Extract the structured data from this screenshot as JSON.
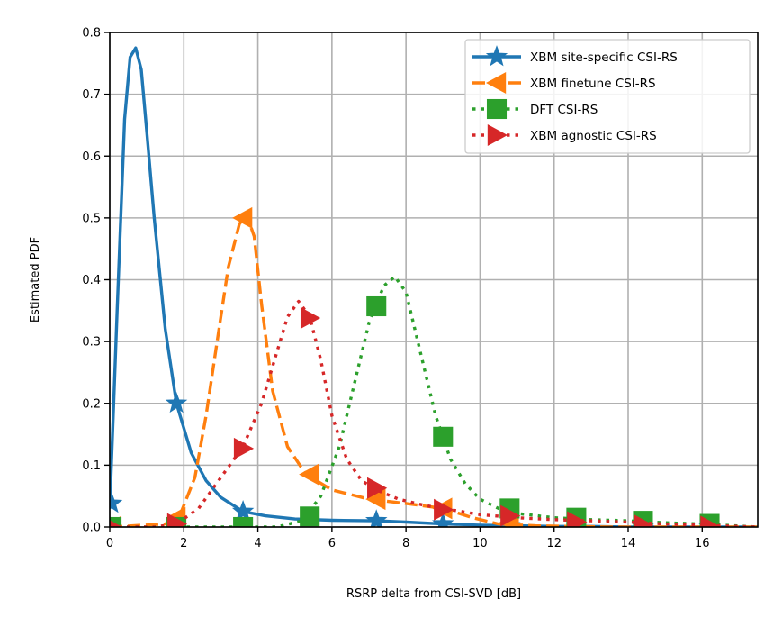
{
  "chart_data": {
    "type": "line",
    "title": "",
    "xlabel": "RSRP delta from CSI-SVD [dB]",
    "ylabel": "Estimated PDF",
    "xlim": [
      0,
      17.5
    ],
    "ylim": [
      0,
      0.8
    ],
    "xticks": [
      0,
      2,
      4,
      6,
      8,
      10,
      12,
      14,
      16
    ],
    "xtick_labels": [
      "0",
      "2",
      "4",
      "6",
      "8",
      "10",
      "12",
      "14",
      "16"
    ],
    "yticks": [
      0.0,
      0.1,
      0.2,
      0.3,
      0.4,
      0.5,
      0.6,
      0.7,
      0.8
    ],
    "ytick_labels": [
      "0.0",
      "0.1",
      "0.2",
      "0.3",
      "0.4",
      "0.5",
      "0.6",
      "0.7",
      "0.8"
    ],
    "grid": true,
    "legend_position": "top-right",
    "series": [
      {
        "name": "XBM site-specific CSI-RS",
        "color": "#1f77b4",
        "linestyle": "solid",
        "marker": "star",
        "x": [
          0,
          0.2,
          0.4,
          0.55,
          0.7,
          0.85,
          1.0,
          1.2,
          1.5,
          1.8,
          2.2,
          2.6,
          3.0,
          3.6,
          4.2,
          5.0,
          6.0,
          7.2,
          8.0,
          9.0,
          10.0,
          11.0,
          12.0,
          13.0,
          14.0,
          15.0,
          16.0,
          17.5
        ],
        "y": [
          0.03,
          0.35,
          0.66,
          0.76,
          0.775,
          0.74,
          0.64,
          0.5,
          0.32,
          0.2,
          0.12,
          0.075,
          0.048,
          0.025,
          0.018,
          0.013,
          0.011,
          0.01,
          0.008,
          0.005,
          0.003,
          0.002,
          0.001,
          0.001,
          0.0,
          0.0,
          0.0,
          0.0
        ],
        "marker_x": [
          0.05,
          1.8,
          3.6,
          7.2,
          9.0,
          10.8,
          12.6,
          14.4,
          16.2
        ],
        "marker_y": [
          0.038,
          0.2,
          0.025,
          0.01,
          0.005,
          0.002,
          0.001,
          0.0,
          0.0
        ]
      },
      {
        "name": "XBM finetune CSI-RS",
        "color": "#ff7f0e",
        "linestyle": "dashed",
        "marker": "triangle-left",
        "x": [
          0,
          1.5,
          1.9,
          2.3,
          2.6,
          2.9,
          3.2,
          3.5,
          3.7,
          3.9,
          4.1,
          4.4,
          4.8,
          5.3,
          6.0,
          7.0,
          8.0,
          9.0,
          9.8,
          10.5,
          11.5,
          12.5,
          13.5,
          15.0,
          17.5
        ],
        "y": [
          0.0,
          0.005,
          0.02,
          0.08,
          0.18,
          0.3,
          0.42,
          0.49,
          0.505,
          0.47,
          0.36,
          0.22,
          0.13,
          0.085,
          0.06,
          0.045,
          0.038,
          0.03,
          0.015,
          0.005,
          0.002,
          0.001,
          0.0,
          0.0,
          0.0
        ],
        "marker_x": [
          0.05,
          1.8,
          3.6,
          5.4,
          7.2,
          9.0,
          10.8,
          12.6,
          14.4,
          16.2
        ],
        "marker_y": [
          0.0,
          0.015,
          0.5,
          0.085,
          0.045,
          0.03,
          0.007,
          0.001,
          0.0,
          0.0
        ]
      },
      {
        "name": "DFT CSI-RS",
        "color": "#2ca02c",
        "linestyle": "dotted",
        "marker": "square",
        "x": [
          0,
          4.5,
          5.2,
          5.7,
          6.2,
          6.6,
          7.0,
          7.4,
          7.7,
          8.0,
          8.4,
          8.8,
          9.2,
          9.6,
          10.0,
          10.5,
          11.0,
          12.0,
          13.0,
          14.0,
          15.0,
          16.0,
          17.5
        ],
        "y": [
          0.0,
          0.0,
          0.01,
          0.05,
          0.13,
          0.23,
          0.33,
          0.39,
          0.405,
          0.38,
          0.28,
          0.18,
          0.11,
          0.07,
          0.045,
          0.03,
          0.022,
          0.015,
          0.012,
          0.01,
          0.007,
          0.005,
          0.0
        ],
        "marker_x": [
          0.05,
          1.8,
          3.6,
          5.4,
          7.2,
          9.0,
          10.8,
          12.6,
          14.4,
          16.2
        ],
        "marker_y": [
          0.0,
          0.0,
          0.0,
          0.017,
          0.357,
          0.146,
          0.03,
          0.015,
          0.01,
          0.005
        ]
      },
      {
        "name": "XBM agnostic CSI-RS",
        "color": "#d62728",
        "linestyle": "dotted",
        "marker": "triangle-right",
        "x": [
          0,
          1.2,
          1.8,
          2.4,
          3.0,
          3.6,
          4.1,
          4.5,
          4.8,
          5.1,
          5.4,
          5.7,
          6.0,
          6.4,
          6.8,
          7.2,
          7.8,
          8.5,
          9.2,
          10.0,
          11.0,
          12.0,
          13.0,
          14.0,
          15.0,
          16.0,
          17.5
        ],
        "y": [
          0.0,
          0.0,
          0.005,
          0.03,
          0.08,
          0.13,
          0.2,
          0.28,
          0.34,
          0.365,
          0.34,
          0.27,
          0.18,
          0.11,
          0.075,
          0.06,
          0.045,
          0.035,
          0.028,
          0.02,
          0.015,
          0.012,
          0.01,
          0.008,
          0.005,
          0.003,
          0.0
        ],
        "marker_x": [
          0.05,
          1.8,
          3.6,
          5.4,
          7.2,
          9.0,
          10.8,
          12.6,
          14.4,
          16.2
        ],
        "marker_y": [
          0.0,
          0.005,
          0.127,
          0.338,
          0.063,
          0.028,
          0.018,
          0.008,
          0.003,
          0.001
        ]
      }
    ]
  }
}
